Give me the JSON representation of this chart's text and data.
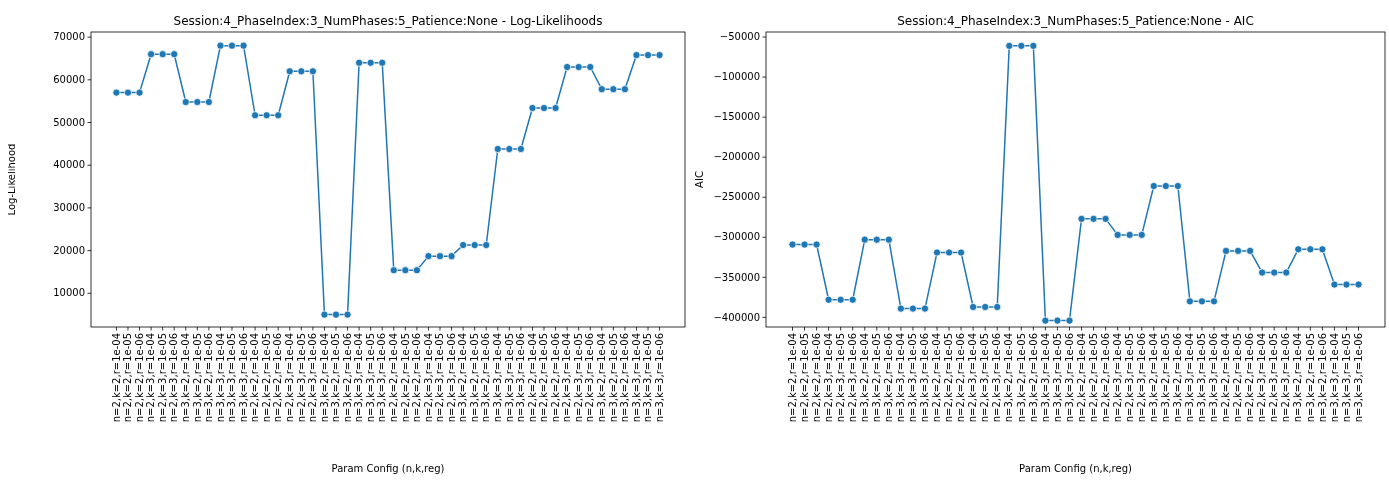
{
  "chart_data": [
    {
      "type": "line",
      "title": "Session:4_PhaseIndex:3_NumPhases:5_Patience:None - Log-Likelihoods",
      "xlabel": "Param Config (n,k,reg)",
      "ylabel": "Log-Likelihood",
      "marker": "circle",
      "line_style": "solid",
      "grid": false,
      "categories": [
        "n=2,k=2,r=1e-04",
        "n=2,k=2,r=1e-05",
        "n=2,k=2,r=1e-06",
        "n=2,k=3,r=1e-04",
        "n=2,k=3,r=1e-05",
        "n=2,k=3,r=1e-06",
        "n=3,k=2,r=1e-04",
        "n=3,k=2,r=1e-05",
        "n=3,k=2,r=1e-06",
        "n=3,k=3,r=1e-04",
        "n=3,k=3,r=1e-05",
        "n=3,k=3,r=1e-06",
        "n=2,k=2,r=1e-04",
        "n=2,k=2,r=1e-05",
        "n=2,k=2,r=1e-06",
        "n=2,k=3,r=1e-04",
        "n=2,k=3,r=1e-05",
        "n=2,k=3,r=1e-06",
        "n=3,k=2,r=1e-04",
        "n=3,k=2,r=1e-05",
        "n=3,k=2,r=1e-06",
        "n=3,k=3,r=1e-04",
        "n=3,k=3,r=1e-05",
        "n=3,k=3,r=1e-06",
        "n=2,k=2,r=1e-04",
        "n=2,k=2,r=1e-05",
        "n=2,k=2,r=1e-06",
        "n=2,k=3,r=1e-04",
        "n=2,k=3,r=1e-05",
        "n=2,k=3,r=1e-06",
        "n=3,k=2,r=1e-04",
        "n=3,k=2,r=1e-05",
        "n=3,k=2,r=1e-06",
        "n=3,k=3,r=1e-04",
        "n=3,k=3,r=1e-05",
        "n=3,k=3,r=1e-06",
        "n=2,k=2,r=1e-04",
        "n=2,k=2,r=1e-05",
        "n=2,k=2,r=1e-06",
        "n=2,k=3,r=1e-04",
        "n=2,k=3,r=1e-05",
        "n=2,k=3,r=1e-06",
        "n=3,k=2,r=1e-04",
        "n=3,k=2,r=1e-05",
        "n=3,k=2,r=1e-06",
        "n=3,k=3,r=1e-04",
        "n=3,k=3,r=1e-05",
        "n=3,k=3,r=1e-06"
      ],
      "series": [
        {
          "color": "#1f77b4",
          "values": [
            57000,
            57000,
            57000,
            66000,
            66000,
            66000,
            54800,
            54800,
            54800,
            68000,
            68000,
            68000,
            51700,
            51700,
            51700,
            62000,
            62000,
            62000,
            5000,
            5000,
            5000,
            64000,
            64000,
            64000,
            15400,
            15400,
            15400,
            18700,
            18700,
            18700,
            21300,
            21300,
            21300,
            43800,
            43800,
            43800,
            53400,
            53400,
            53400,
            63000,
            63000,
            63000,
            57800,
            57800,
            57800,
            65800,
            65800,
            65800
          ]
        }
      ],
      "ylim": [
        2100,
        71200
      ],
      "yticks": [
        10000,
        20000,
        30000,
        40000,
        50000,
        60000,
        70000
      ]
    },
    {
      "type": "line",
      "title": "Session:4_PhaseIndex:3_NumPhases:5_Patience:None - AIC",
      "xlabel": "Param Config (n,k,reg)",
      "ylabel": "AIC",
      "marker": "circle",
      "line_style": "solid",
      "grid": false,
      "categories": [
        "n=2,k=2,r=1e-04",
        "n=2,k=2,r=1e-05",
        "n=2,k=2,r=1e-06",
        "n=2,k=3,r=1e-04",
        "n=2,k=3,r=1e-05",
        "n=2,k=3,r=1e-06",
        "n=3,k=2,r=1e-04",
        "n=3,k=2,r=1e-05",
        "n=3,k=2,r=1e-06",
        "n=3,k=3,r=1e-04",
        "n=3,k=3,r=1e-05",
        "n=3,k=3,r=1e-06",
        "n=2,k=2,r=1e-04",
        "n=2,k=2,r=1e-05",
        "n=2,k=2,r=1e-06",
        "n=2,k=3,r=1e-04",
        "n=2,k=3,r=1e-05",
        "n=2,k=3,r=1e-06",
        "n=3,k=2,r=1e-04",
        "n=3,k=2,r=1e-05",
        "n=3,k=2,r=1e-06",
        "n=3,k=3,r=1e-04",
        "n=3,k=3,r=1e-05",
        "n=3,k=3,r=1e-06",
        "n=2,k=2,r=1e-04",
        "n=2,k=2,r=1e-05",
        "n=2,k=2,r=1e-06",
        "n=2,k=3,r=1e-04",
        "n=2,k=3,r=1e-05",
        "n=2,k=3,r=1e-06",
        "n=3,k=2,r=1e-04",
        "n=3,k=2,r=1e-05",
        "n=3,k=2,r=1e-06",
        "n=3,k=3,r=1e-04",
        "n=3,k=3,r=1e-05",
        "n=3,k=3,r=1e-06",
        "n=2,k=2,r=1e-04",
        "n=2,k=2,r=1e-05",
        "n=2,k=2,r=1e-06",
        "n=2,k=3,r=1e-04",
        "n=2,k=3,r=1e-05",
        "n=2,k=3,r=1e-06",
        "n=3,k=2,r=1e-04",
        "n=3,k=2,r=1e-05",
        "n=3,k=2,r=1e-06",
        "n=3,k=3,r=1e-04",
        "n=3,k=3,r=1e-05",
        "n=3,k=3,r=1e-06"
      ],
      "series": [
        {
          "color": "#1f77b4",
          "values": [
            -309000,
            -309000,
            -309000,
            -378000,
            -378000,
            -378000,
            -303000,
            -303000,
            -303000,
            -389000,
            -389000,
            -389000,
            -319000,
            -319000,
            -319000,
            -387000,
            -387000,
            -387000,
            -61000,
            -61000,
            -61000,
            -404000,
            -404000,
            -404000,
            -277000,
            -277000,
            -277000,
            -297000,
            -297000,
            -297000,
            -236000,
            -236000,
            -236000,
            -380000,
            -380000,
            -380000,
            -317000,
            -317000,
            -317000,
            -344000,
            -344000,
            -344000,
            -315000,
            -315000,
            -315000,
            -359000,
            -359000,
            -359000
          ]
        }
      ],
      "ylim": [
        -412000,
        -43700
      ],
      "yticks": [
        {
          "value": -400000,
          "label": "−400000"
        },
        {
          "value": -350000,
          "label": "−350000"
        },
        {
          "value": -300000,
          "label": "−300000"
        },
        {
          "value": -250000,
          "label": "−250000"
        },
        {
          "value": -200000,
          "label": "−200000"
        },
        {
          "value": -150000,
          "label": "−150000"
        },
        {
          "value": -100000,
          "label": "−100000"
        },
        {
          "value": -50000,
          "label": "−50000"
        }
      ]
    }
  ]
}
